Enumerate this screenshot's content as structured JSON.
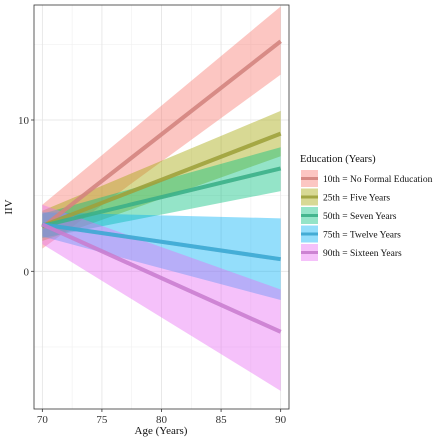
{
  "chart_data": {
    "type": "line",
    "title": "",
    "xlabel": "Age (Years)",
    "ylabel": "IIV",
    "xlim": [
      69.3,
      90.7
    ],
    "ylim": [
      -9.1,
      17.6
    ],
    "xticks": [
      70,
      75,
      80,
      85,
      90
    ],
    "yticks": [
      0,
      10
    ],
    "grid": true,
    "legend_title": "Education (Years)",
    "legend_position": "right",
    "series": [
      {
        "name": "10th = No Formal Education",
        "color": "#F8766D",
        "x": [
          70,
          90
        ],
        "y": [
          2.9,
          15.2
        ],
        "lower": [
          1.5,
          13.0
        ],
        "upper": [
          4.4,
          17.5
        ]
      },
      {
        "name": "25th = Five Years",
        "color": "#A3A500",
        "x": [
          70,
          90
        ],
        "y": [
          3.0,
          9.1
        ],
        "lower": [
          2.0,
          7.6
        ],
        "upper": [
          4.0,
          10.6
        ]
      },
      {
        "name": "50th = Seven Years",
        "color": "#00BF7D",
        "x": [
          70,
          90
        ],
        "y": [
          3.0,
          6.8
        ],
        "lower": [
          2.2,
          5.3
        ],
        "upper": [
          3.8,
          8.2
        ]
      },
      {
        "name": "75th = Twelve Years",
        "color": "#00B0F6",
        "x": [
          70,
          90
        ],
        "y": [
          3.1,
          0.8
        ],
        "lower": [
          2.3,
          -1.9
        ],
        "upper": [
          3.9,
          3.5
        ]
      },
      {
        "name": "90th = Sixteen Years",
        "color": "#E76BF3",
        "x": [
          70,
          90
        ],
        "y": [
          3.1,
          -4.0
        ],
        "lower": [
          1.8,
          -7.9
        ],
        "upper": [
          4.4,
          -1.2
        ]
      }
    ]
  }
}
